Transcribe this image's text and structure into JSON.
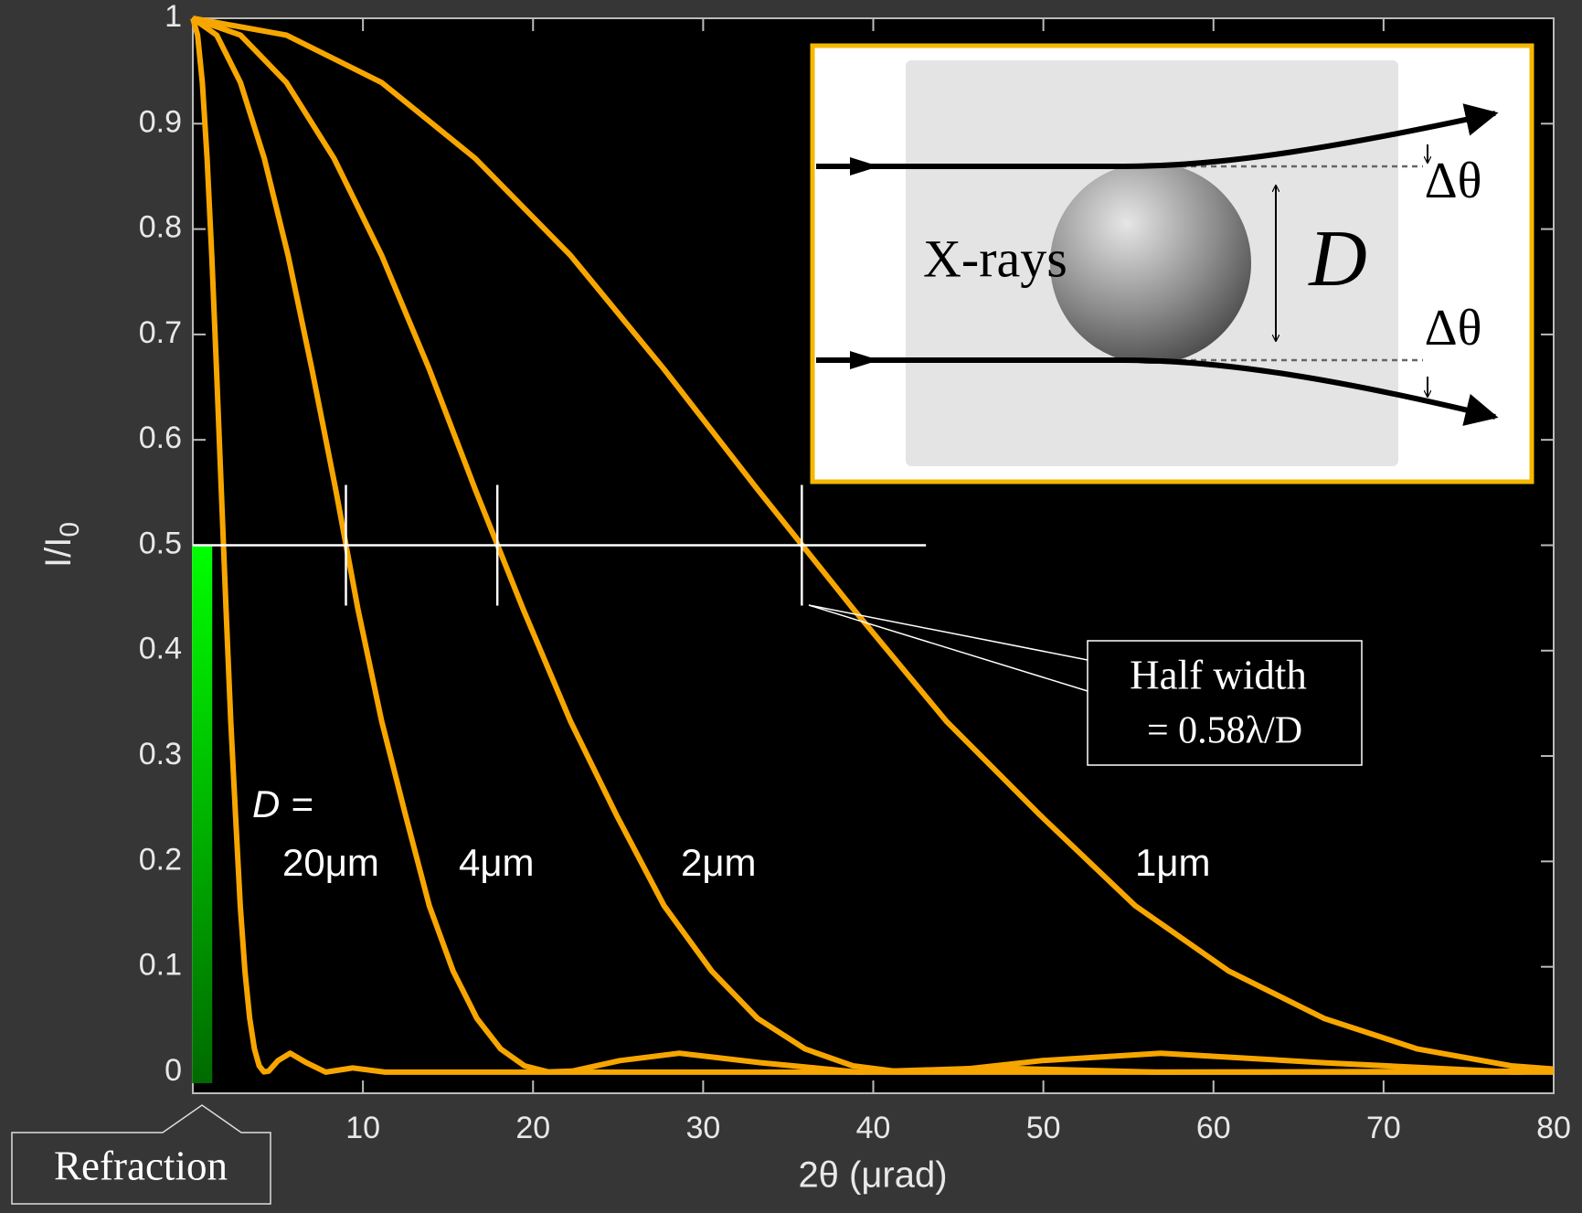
{
  "chart_data": {
    "type": "line",
    "xlabel": "2θ (μrad)",
    "ylabel": {
      "text": "I/I",
      "subscript": "0"
    },
    "xlim": [
      0,
      80
    ],
    "ylim": [
      -0.02,
      1
    ],
    "xticks": [
      10,
      20,
      30,
      40,
      50,
      60,
      70,
      80
    ],
    "yticks": [
      0,
      0.1,
      0.2,
      0.3,
      0.4,
      0.5,
      0.6,
      0.7,
      0.8,
      0.9,
      1
    ],
    "grid": false,
    "series": [
      {
        "name": "20μm",
        "color": "#f7a600",
        "x": [
          0,
          0.28,
          0.56,
          0.84,
          1.11,
          1.39,
          1.67,
          1.95,
          2.23,
          2.51,
          2.79,
          3.06,
          3.34,
          3.62,
          3.9,
          4.18,
          4.46,
          5.01,
          5.72,
          6.68,
          7.82,
          9.4,
          11.3,
          80
        ],
        "values": [
          1,
          0.984,
          0.939,
          0.867,
          0.775,
          0.667,
          0.553,
          0.44,
          0.333,
          0.244,
          0.158,
          0.096,
          0.051,
          0.022,
          0.006,
          0.0003,
          0.001,
          0.011,
          0.018,
          0.009,
          0,
          0.004,
          0,
          0
        ]
      },
      {
        "name": "4μm",
        "color": "#f7a600",
        "x": [
          0,
          1.4,
          2.8,
          4.2,
          5.6,
          7.0,
          8.4,
          9.7,
          11.1,
          12.5,
          13.9,
          15.3,
          16.7,
          18.1,
          19.5,
          20.9,
          22.3,
          25.1,
          28.6,
          33.4,
          39.1,
          46.9,
          56.6,
          80
        ],
        "values": [
          1,
          0.984,
          0.939,
          0.867,
          0.775,
          0.667,
          0.553,
          0.44,
          0.333,
          0.244,
          0.158,
          0.096,
          0.051,
          0.022,
          0.006,
          0.0003,
          0.001,
          0.011,
          0.018,
          0.009,
          0,
          0.004,
          0,
          0.001
        ]
      },
      {
        "name": "2μm",
        "color": "#f7a600",
        "x": [
          0,
          2.8,
          5.5,
          8.3,
          11.1,
          13.9,
          16.6,
          19.4,
          22.2,
          24.9,
          27.7,
          30.5,
          33.2,
          36.0,
          38.8,
          41.6,
          44.3,
          49.9,
          56.9,
          66.5,
          77.7,
          80
        ],
        "values": [
          1,
          0.984,
          0.939,
          0.867,
          0.775,
          0.667,
          0.553,
          0.44,
          0.333,
          0.244,
          0.158,
          0.096,
          0.051,
          0.022,
          0.006,
          0.0003,
          0.001,
          0.011,
          0.018,
          0.009,
          0,
          0.001
        ]
      },
      {
        "name": "1μm",
        "color": "#f7a600",
        "x": [
          0,
          5.5,
          11.1,
          16.6,
          22.2,
          27.7,
          33.2,
          38.8,
          44.3,
          49.8,
          55.4,
          60.9,
          66.5,
          72.0,
          77.5,
          80
        ],
        "values": [
          1,
          0.984,
          0.939,
          0.867,
          0.775,
          0.667,
          0.553,
          0.44,
          0.333,
          0.244,
          0.158,
          0.096,
          0.051,
          0.022,
          0.006,
          0.003
        ]
      }
    ],
    "series_prefix": "D =",
    "half_width_line": {
      "y": 0.5,
      "x": [
        0,
        43.1
      ],
      "ticks": [
        9,
        17.9,
        35.8
      ]
    },
    "refraction_bar": {
      "x": 0.55,
      "y": [
        0,
        0.5
      ]
    },
    "annotations": {
      "refraction": "Refraction",
      "half_width": "Half width",
      "formula": "= 0.58λ/D"
    }
  },
  "inset": {
    "source": "X-rays",
    "diameter": "D",
    "angle": [
      "Δθ",
      "Δθ"
    ]
  }
}
